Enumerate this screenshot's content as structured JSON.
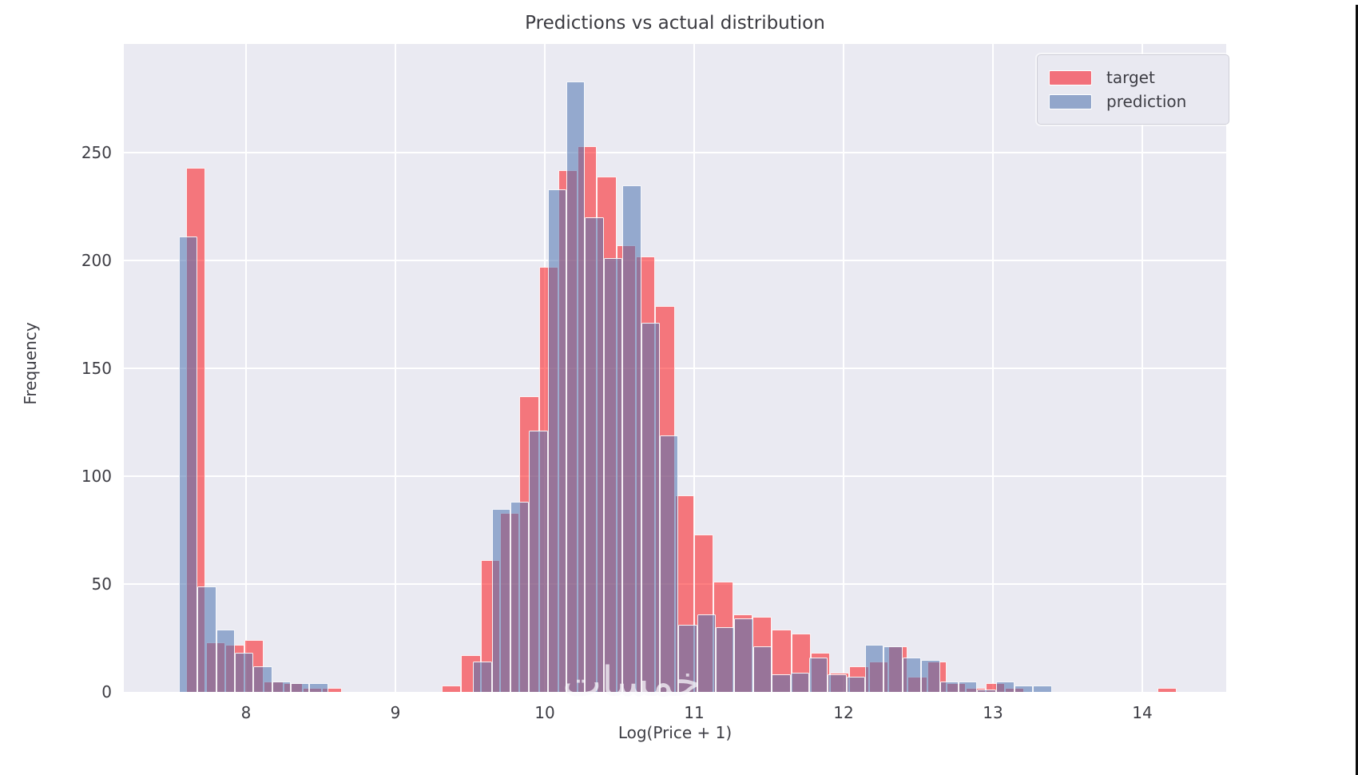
{
  "watermark": {
    "text": "خمسات"
  },
  "chart_data": {
    "type": "bar",
    "subtype": "overlaid-histogram",
    "title": "Predictions vs actual distribution",
    "xlabel": "Log(Price + 1)",
    "ylabel": "Frequency",
    "x_ticks": [
      8,
      9,
      10,
      11,
      12,
      13,
      14
    ],
    "y_ticks": [
      0,
      50,
      100,
      150,
      200,
      250
    ],
    "xlim": [
      7.18,
      14.56
    ],
    "ylim": [
      0,
      300
    ],
    "grid": "white-on-lavender",
    "plot_bg_color": "#eaeaf2",
    "legend_position": "upper right",
    "legend": [
      {
        "label": "target",
        "swatch_color": "#f2707b"
      },
      {
        "label": "prediction",
        "swatch_color": "#92a6cb"
      }
    ],
    "series": [
      {
        "name": "target",
        "fill_color": "rgba(253,12,16,0.52)",
        "edge_color": "#ffffff",
        "bin_width": 0.13,
        "bars": [
          [
            7.6,
            243
          ],
          [
            7.73,
            23
          ],
          [
            7.86,
            22
          ],
          [
            7.99,
            24
          ],
          [
            8.12,
            5
          ],
          [
            8.25,
            4
          ],
          [
            8.38,
            2
          ],
          [
            8.51,
            2
          ],
          [
            9.31,
            3
          ],
          [
            9.44,
            17
          ],
          [
            9.57,
            61
          ],
          [
            9.7,
            83
          ],
          [
            9.83,
            137
          ],
          [
            9.96,
            197
          ],
          [
            10.09,
            242
          ],
          [
            10.22,
            253
          ],
          [
            10.35,
            239
          ],
          [
            10.48,
            207
          ],
          [
            10.61,
            202
          ],
          [
            10.74,
            179
          ],
          [
            10.87,
            91
          ],
          [
            11.0,
            73
          ],
          [
            11.13,
            51
          ],
          [
            11.26,
            36
          ],
          [
            11.39,
            35
          ],
          [
            11.52,
            29
          ],
          [
            11.65,
            27
          ],
          [
            11.78,
            18
          ],
          [
            11.91,
            9
          ],
          [
            12.04,
            12
          ],
          [
            12.17,
            14
          ],
          [
            12.3,
            21
          ],
          [
            12.43,
            7
          ],
          [
            12.56,
            14
          ],
          [
            12.69,
            4
          ],
          [
            12.82,
            2
          ],
          [
            12.95,
            4
          ],
          [
            13.08,
            2
          ],
          [
            14.1,
            2
          ]
        ]
      },
      {
        "name": "prediction",
        "fill_color": "rgba(76,114,176,0.55)",
        "edge_color": "#ffffff",
        "bin_width": 0.125,
        "bars": [
          [
            7.55,
            211
          ],
          [
            7.675,
            49
          ],
          [
            7.8,
            29
          ],
          [
            7.925,
            18
          ],
          [
            8.05,
            12
          ],
          [
            8.175,
            5
          ],
          [
            8.3,
            4
          ],
          [
            8.425,
            4
          ],
          [
            9.52,
            14
          ],
          [
            9.645,
            85
          ],
          [
            9.77,
            88
          ],
          [
            9.895,
            121
          ],
          [
            10.02,
            233
          ],
          [
            10.145,
            283
          ],
          [
            10.27,
            220
          ],
          [
            10.395,
            201
          ],
          [
            10.52,
            235
          ],
          [
            10.645,
            171
          ],
          [
            10.77,
            119
          ],
          [
            10.895,
            31
          ],
          [
            11.02,
            36
          ],
          [
            11.145,
            30
          ],
          [
            11.27,
            34
          ],
          [
            11.395,
            21
          ],
          [
            11.52,
            8
          ],
          [
            11.645,
            9
          ],
          [
            11.77,
            16
          ],
          [
            11.895,
            8
          ],
          [
            12.02,
            7
          ],
          [
            12.145,
            22
          ],
          [
            12.27,
            21
          ],
          [
            12.395,
            16
          ],
          [
            12.52,
            15
          ],
          [
            12.645,
            5
          ],
          [
            12.77,
            5
          ],
          [
            12.895,
            1
          ],
          [
            13.02,
            5
          ],
          [
            13.145,
            3
          ],
          [
            13.27,
            3
          ]
        ]
      }
    ]
  }
}
